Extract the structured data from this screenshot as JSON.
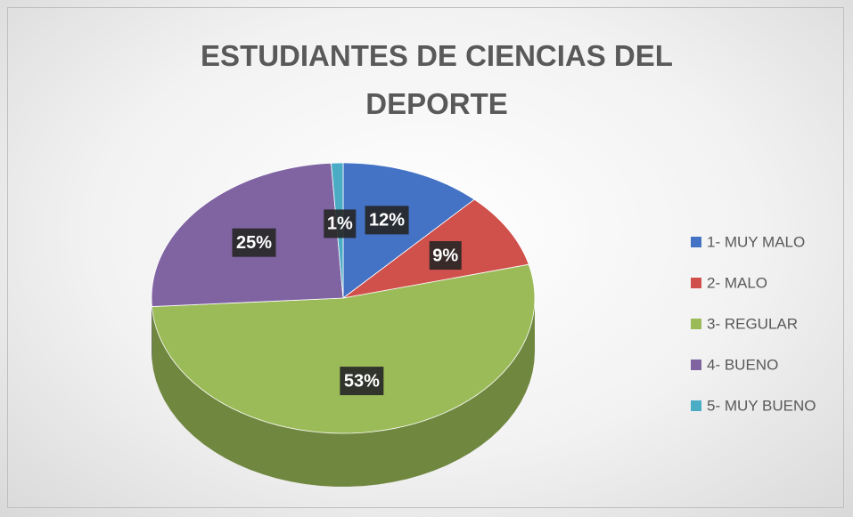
{
  "chart_data": {
    "type": "pie",
    "title": "ESTUDIANTES DE CIENCIAS DEL DEPORTE",
    "categories": [
      "1- MUY MALO",
      "2- MALO",
      "3- REGULAR",
      "4- BUENO",
      "5- MUY BUENO"
    ],
    "values": [
      12,
      9,
      53,
      25,
      1
    ],
    "value_labels": [
      "12%",
      "9%",
      "53%",
      "25%",
      "1%"
    ],
    "colors": [
      "#4472c4",
      "#d0504c",
      "#9bbb59",
      "#8064a2",
      "#4bacc6"
    ],
    "legend": "right"
  }
}
